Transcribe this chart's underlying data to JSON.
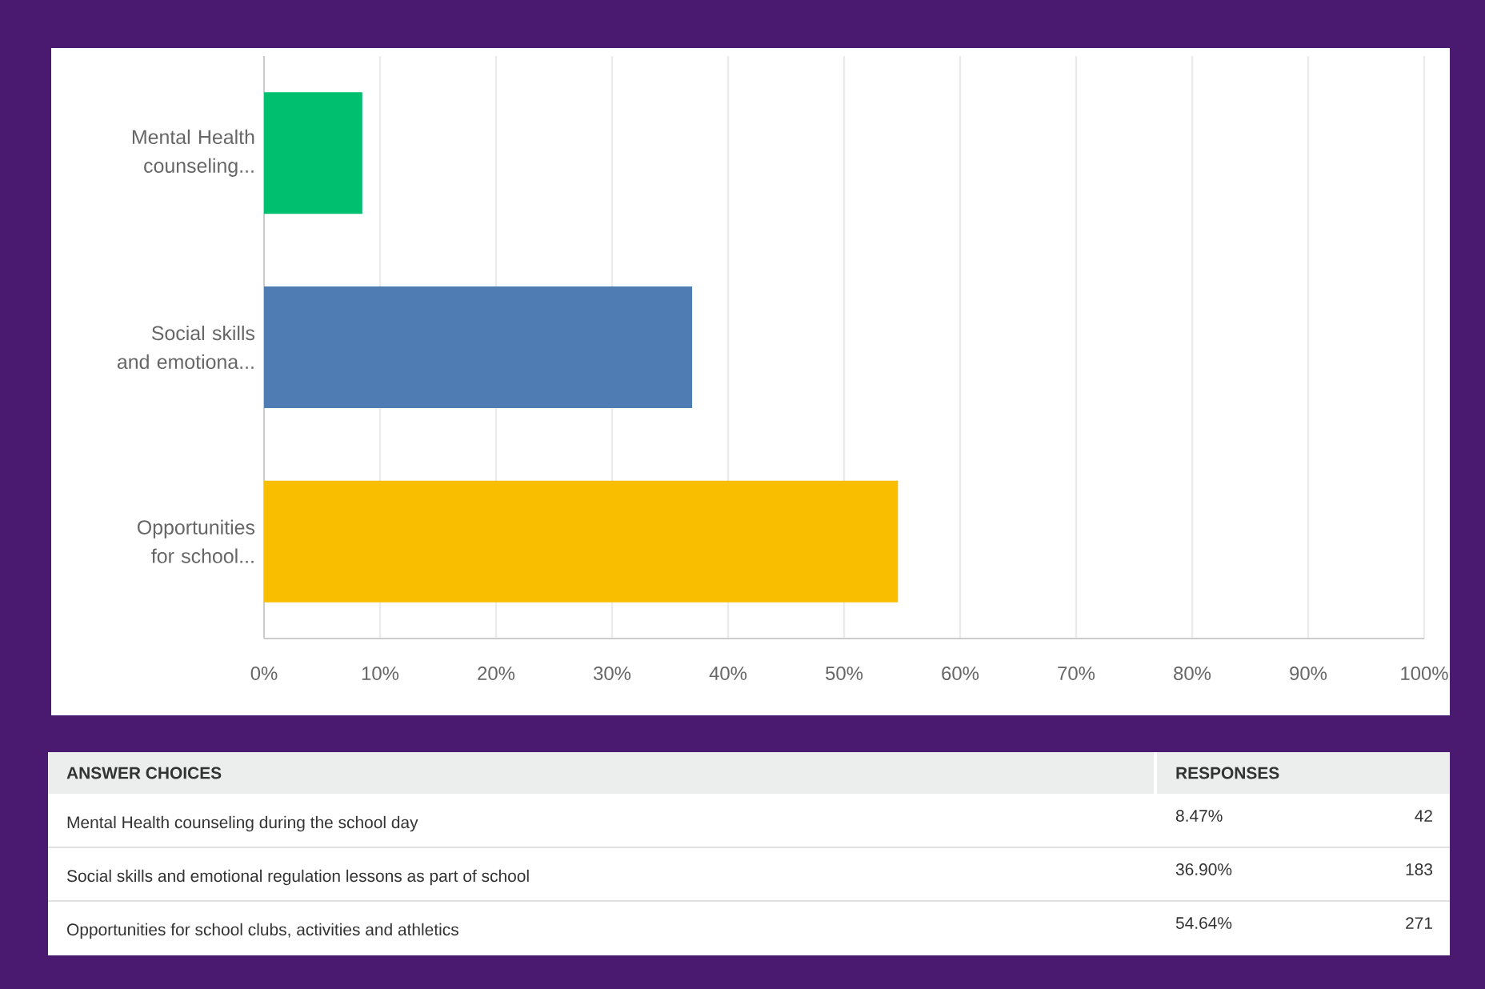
{
  "chart_data": {
    "type": "bar",
    "orientation": "horizontal",
    "categories": [
      "Mental Health counseling...",
      "Social skills and emotiona...",
      "Opportunities for school..."
    ],
    "values": [
      8.47,
      36.9,
      54.64
    ],
    "colors": [
      "#00bf6f",
      "#507cb4",
      "#f9be00"
    ],
    "xlim": [
      0,
      100
    ],
    "xticks": [
      {
        "value": 0,
        "label": "0%"
      },
      {
        "value": 10,
        "label": "10%"
      },
      {
        "value": 20,
        "label": "20%"
      },
      {
        "value": 30,
        "label": "30%"
      },
      {
        "value": 40,
        "label": "40%"
      },
      {
        "value": 50,
        "label": "50%"
      },
      {
        "value": 60,
        "label": "60%"
      },
      {
        "value": 70,
        "label": "70%"
      },
      {
        "value": 80,
        "label": "80%"
      },
      {
        "value": 90,
        "label": "90%"
      },
      {
        "value": 100,
        "label": "100%"
      }
    ],
    "grid": "x",
    "annotations": [
      "ANSWER CHOICES",
      "RESPONSES",
      "Mental Health counseling during the school day",
      "Social skills and emotional regulation lessons as part of school",
      "Opportunities for school clubs, activities and athletics",
      "8.47%",
      "36.90%",
      "54.64%",
      "42",
      "183",
      "271"
    ]
  }
}
